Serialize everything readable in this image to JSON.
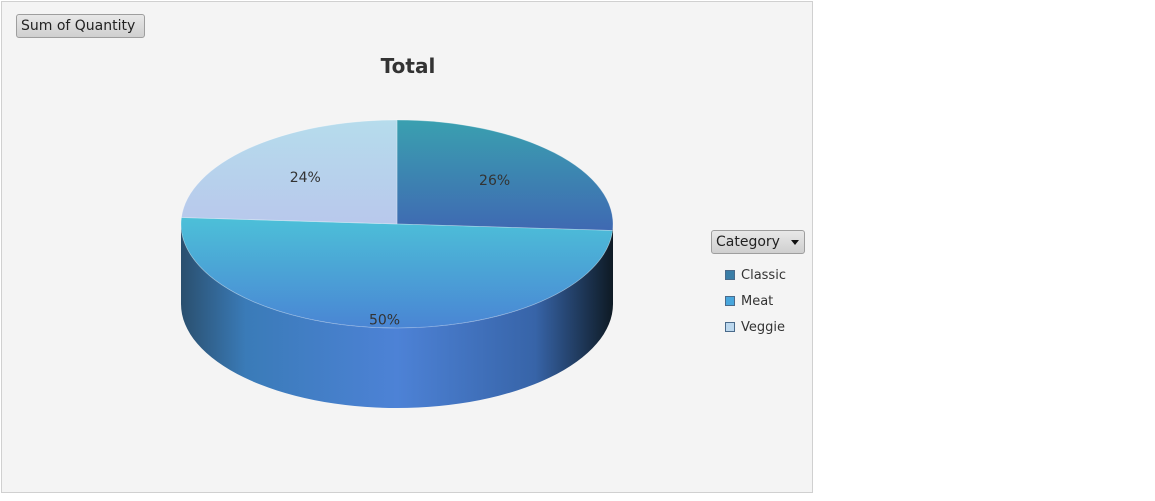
{
  "pivot": {
    "value_field_label": "Sum of Quantity",
    "axis_field_label": "Category"
  },
  "chart_data": {
    "type": "pie",
    "style": "3d",
    "title": "Total",
    "categories": [
      "Classic",
      "Meat",
      "Veggie"
    ],
    "values": [
      26,
      50,
      24
    ],
    "data_labels": [
      "26%",
      "50%",
      "24%"
    ],
    "legend_position": "right",
    "colors": {
      "Classic": [
        "#3aa0b0",
        "#3f69b2"
      ],
      "Meat": [
        "#4cc0d8",
        "#4a85d4"
      ],
      "Veggie": [
        "#b6dcec",
        "#b8c8ec"
      ],
      "side_dark": "#1c2f3e",
      "side_mid": "#4d82d6"
    }
  }
}
